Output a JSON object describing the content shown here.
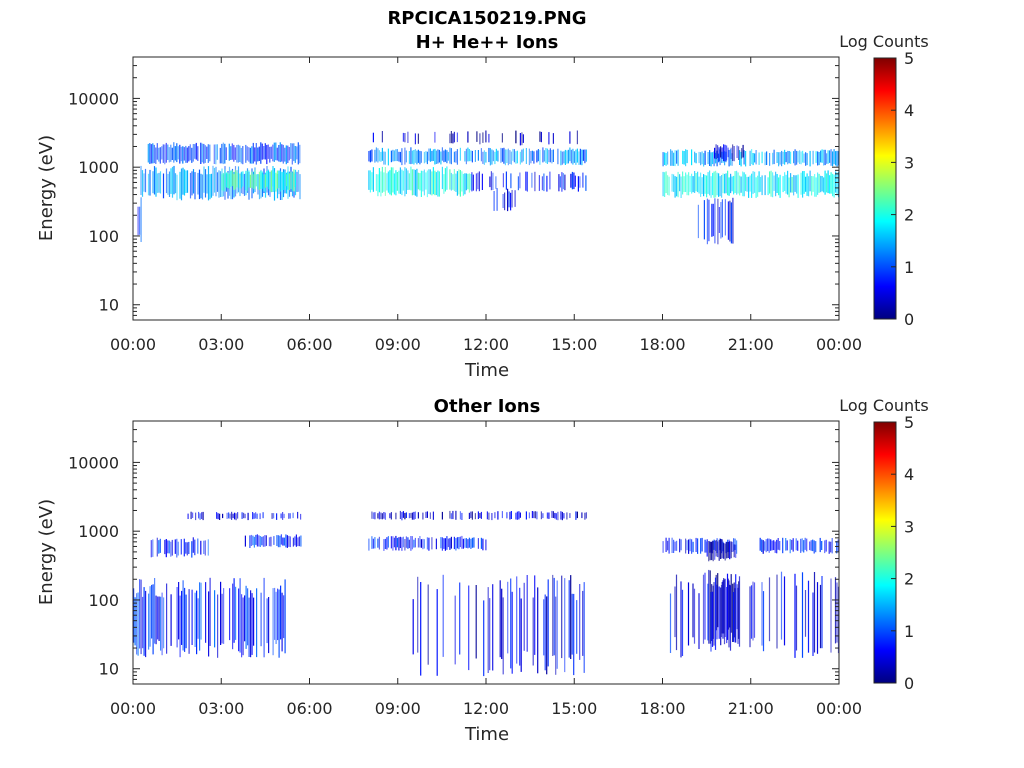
{
  "figure": {
    "filename": "RPCICA150219.PNG"
  },
  "colormap": {
    "name": "jet",
    "stops": [
      "#00007f",
      "#0000ff",
      "#007fff",
      "#00ffff",
      "#7fff7f",
      "#ffff00",
      "#ff7f00",
      "#ff0000",
      "#7f0000"
    ]
  },
  "chart_data": [
    {
      "type": "heatmap",
      "title": "H+ He++ Ions",
      "xlabel": "Time",
      "ylabel": "Energy (eV)",
      "x_ticks": [
        "00:00",
        "03:00",
        "06:00",
        "09:00",
        "12:00",
        "15:00",
        "18:00",
        "21:00",
        "00:00"
      ],
      "y_ticks": [
        "10",
        "100",
        "1000",
        "10000"
      ],
      "y_scale": "log",
      "ylim": [
        6,
        40000
      ],
      "xlim_hours": [
        0,
        24
      ],
      "colorbar": {
        "label": "Log Counts",
        "ticks": [
          "0",
          "1",
          "2",
          "3",
          "4",
          "5"
        ],
        "range": [
          0,
          5
        ]
      },
      "bands": [
        {
          "t0": 0.5,
          "t1": 5.7,
          "e0": 1200,
          "e1": 2100,
          "level": 1.0,
          "density": 0.9
        },
        {
          "t0": 0.2,
          "t1": 5.7,
          "e0": 380,
          "e1": 900,
          "level": 1.3,
          "density": 0.9
        },
        {
          "t0": 3.0,
          "t1": 5.5,
          "e0": 480,
          "e1": 850,
          "level": 2.1,
          "density": 0.95
        },
        {
          "t0": 0.0,
          "t1": 0.4,
          "e0": 90,
          "e1": 300,
          "level": 0.9,
          "density": 0.6
        },
        {
          "t0": 8.0,
          "t1": 15.4,
          "e0": 1150,
          "e1": 1800,
          "level": 1.3,
          "density": 0.85
        },
        {
          "t0": 8.0,
          "t1": 11.5,
          "e0": 420,
          "e1": 900,
          "level": 1.9,
          "density": 0.95
        },
        {
          "t0": 11.5,
          "t1": 15.4,
          "e0": 480,
          "e1": 800,
          "level": 0.7,
          "density": 0.55
        },
        {
          "t0": 12.0,
          "t1": 13.0,
          "e0": 250,
          "e1": 450,
          "level": 0.6,
          "density": 0.5
        },
        {
          "t0": 18.0,
          "t1": 24.0,
          "e0": 1100,
          "e1": 1700,
          "level": 1.4,
          "density": 0.85
        },
        {
          "t0": 19.7,
          "t1": 20.8,
          "e0": 1300,
          "e1": 2000,
          "level": 0.4,
          "density": 0.9
        },
        {
          "t0": 18.0,
          "t1": 24.0,
          "e0": 400,
          "e1": 800,
          "level": 1.8,
          "density": 0.95
        },
        {
          "t0": 19.2,
          "t1": 20.4,
          "e0": 90,
          "e1": 300,
          "level": 0.6,
          "density": 0.6
        },
        {
          "t0": 8.0,
          "t1": 15.4,
          "e0": 2200,
          "e1": 3200,
          "level": 0.3,
          "density": 0.2
        }
      ]
    },
    {
      "type": "heatmap",
      "title": "Other Ions",
      "xlabel": "Time",
      "ylabel": "Energy (eV)",
      "x_ticks": [
        "00:00",
        "03:00",
        "06:00",
        "09:00",
        "12:00",
        "15:00",
        "18:00",
        "21:00",
        "00:00"
      ],
      "y_ticks": [
        "10",
        "100",
        "1000",
        "10000"
      ],
      "y_scale": "log",
      "ylim": [
        6,
        40000
      ],
      "xlim_hours": [
        0,
        24
      ],
      "colorbar": {
        "label": "Log Counts",
        "ticks": [
          "0",
          "1",
          "2",
          "3",
          "4",
          "5"
        ],
        "range": [
          0,
          5
        ]
      },
      "bands": [
        {
          "t0": 1.7,
          "t1": 5.7,
          "e0": 1500,
          "e1": 1850,
          "level": 0.5,
          "density": 0.5
        },
        {
          "t0": 3.8,
          "t1": 5.7,
          "e0": 600,
          "e1": 850,
          "level": 0.8,
          "density": 0.8
        },
        {
          "t0": 0.6,
          "t1": 2.6,
          "e0": 450,
          "e1": 750,
          "level": 0.8,
          "density": 0.7
        },
        {
          "t0": 0.0,
          "t1": 5.2,
          "e0": 20,
          "e1": 150,
          "level": 0.8,
          "density": 0.7
        },
        {
          "t0": 8.0,
          "t1": 15.4,
          "e0": 1500,
          "e1": 1900,
          "level": 0.4,
          "density": 0.45
        },
        {
          "t0": 8.0,
          "t1": 12.0,
          "e0": 550,
          "e1": 800,
          "level": 0.7,
          "density": 0.75
        },
        {
          "t0": 9.3,
          "t1": 15.4,
          "e0": 12,
          "e1": 150,
          "level": 0.5,
          "density": 0.35
        },
        {
          "t0": 18.0,
          "t1": 20.5,
          "e0": 500,
          "e1": 750,
          "level": 0.7,
          "density": 0.8
        },
        {
          "t0": 19.5,
          "t1": 20.5,
          "e0": 400,
          "e1": 700,
          "level": 0.3,
          "density": 0.9
        },
        {
          "t0": 19.5,
          "t1": 20.6,
          "e0": 30,
          "e1": 200,
          "level": 0.3,
          "density": 0.9
        },
        {
          "t0": 18.2,
          "t1": 24.0,
          "e0": 20,
          "e1": 180,
          "level": 0.6,
          "density": 0.4
        },
        {
          "t0": 21.3,
          "t1": 24.0,
          "e0": 500,
          "e1": 750,
          "level": 0.8,
          "density": 0.7
        }
      ]
    }
  ]
}
